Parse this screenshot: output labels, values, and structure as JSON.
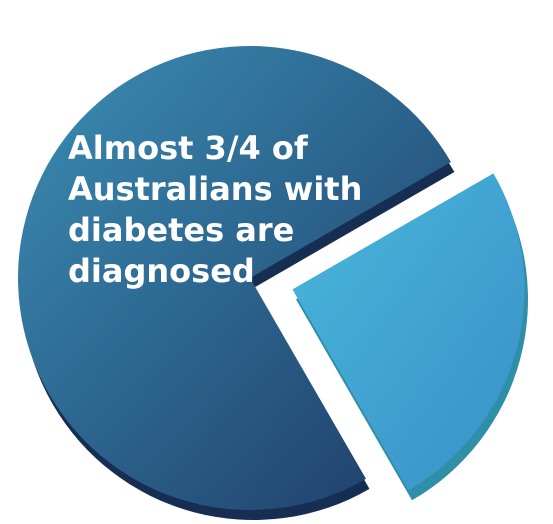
{
  "chart_data": {
    "type": "pie",
    "style": "3d-exploded",
    "slices": [
      {
        "label": "Almost 3/4 of\nAustralians with\ndiabetes are\ndiagnosed",
        "value": 75,
        "color": "#2a5a87",
        "exploded": false
      },
      {
        "label": "",
        "value": 25,
        "color": "#3fa6d2",
        "exploded": true
      }
    ],
    "legend": "none",
    "colors": {
      "main_light": "#3b8fb5",
      "main_dark": "#1d3a66",
      "main_edge": "#162e52",
      "slice_light": "#48b8db",
      "slice_dark": "#3a8fc8",
      "slice_edge": "#2f8fa8"
    }
  }
}
